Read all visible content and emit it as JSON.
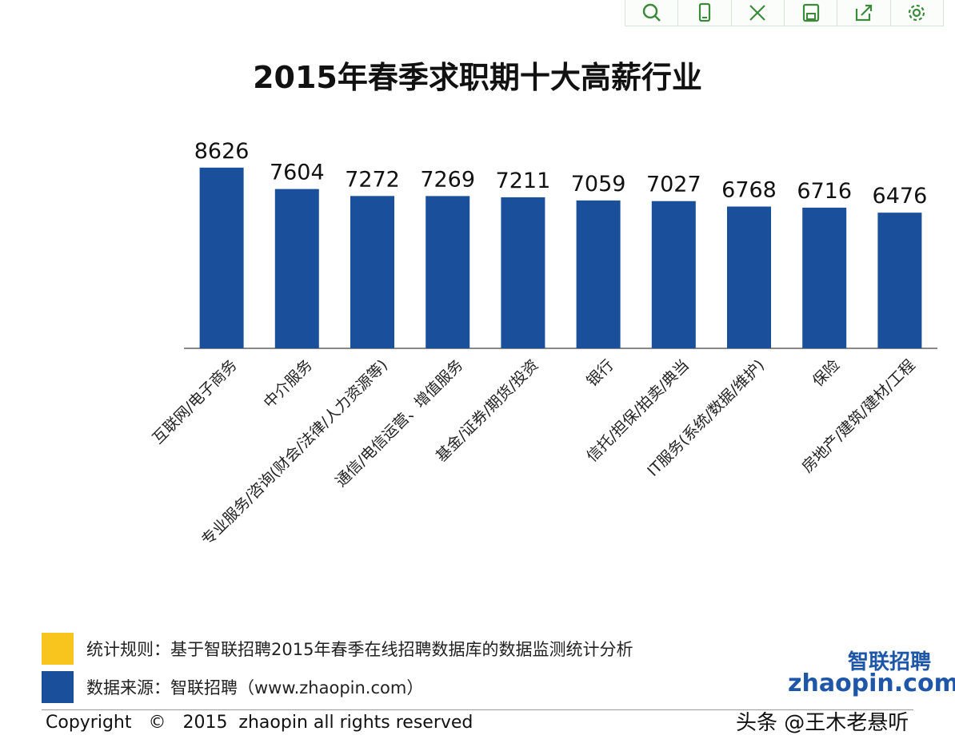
{
  "toolbar": {
    "buttons": [
      {
        "icon": "zoom-icon"
      },
      {
        "icon": "mobile-icon"
      },
      {
        "icon": "expand-icon"
      },
      {
        "icon": "save-icon"
      },
      {
        "icon": "share-icon"
      },
      {
        "icon": "settings-icon"
      }
    ]
  },
  "chart_data": {
    "type": "bar",
    "title": "2015年春季求职期十大高薪行业",
    "categories": [
      "互联网/电子商务",
      "中介服务",
      "专业服务/咨询(财会/法律/人力资源等)",
      "通信/电信运营、增值服务",
      "基金/证券/期货/投资",
      "银行",
      "信托/担保/拍卖/典当",
      "IT服务(系统/数据/维护)",
      "保险",
      "房地产/建筑/建材/工程"
    ],
    "values": [
      8626,
      7604,
      7272,
      7269,
      7211,
      7059,
      7027,
      6768,
      6716,
      6476
    ],
    "ylim": [
      0,
      9000
    ],
    "grid": false,
    "bar_color": "#1a4f9c"
  },
  "legend": {
    "rule": {
      "color": "#f7c51e",
      "text": "统计规则：基于智联招聘2015年春季在线招聘数据库的数据监测统计分析"
    },
    "source": {
      "color": "#1a4f9c",
      "text": "数据来源：智联招聘（www.zhaopin.com）"
    }
  },
  "footer": {
    "copyright": "Copyright   ©   2015  zhaopin all rights reserved",
    "logo_cn": "智联招聘",
    "logo_en": "zhaopin.com",
    "watermark": "头条 @王木老悬听"
  }
}
